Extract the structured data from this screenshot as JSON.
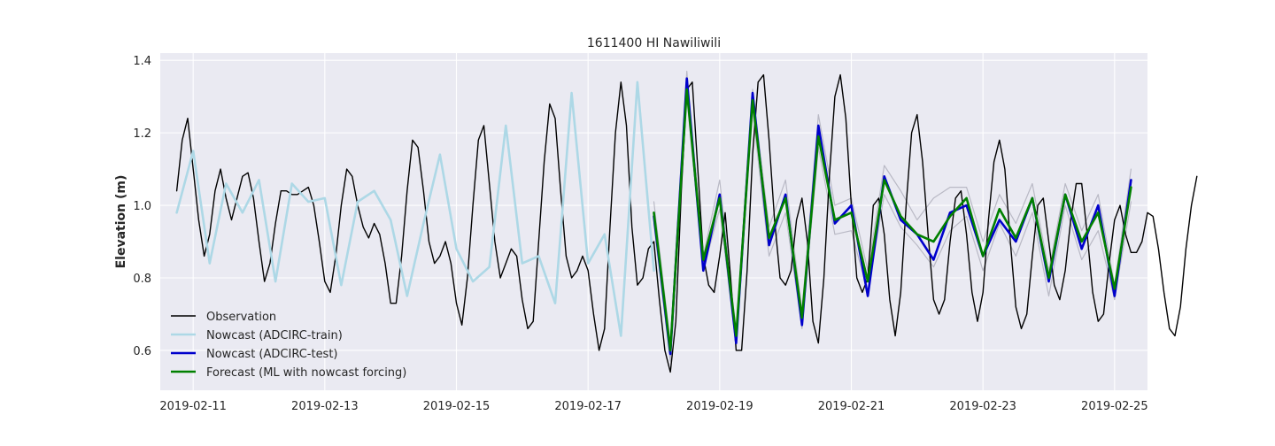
{
  "chart_data": {
    "type": "line",
    "title": "1611400 HI Nawiliwili",
    "xlabel": "",
    "ylabel": "Elevation (m)",
    "xlim": [
      "2019-02-10 12:00",
      "2019-02-25 12:00"
    ],
    "ylim": [
      0.49,
      1.42
    ],
    "xticks": [
      "2019-02-11",
      "2019-02-13",
      "2019-02-15",
      "2019-02-17",
      "2019-02-19",
      "2019-02-21",
      "2019-02-23",
      "2019-02-25"
    ],
    "yticks": [
      "0.6",
      "0.8",
      "1.0",
      "1.2",
      "1.4"
    ],
    "grid": true,
    "legend_position": "lower-left",
    "legend": [
      "Observation",
      "Nowcast (ADCIRC-train)",
      "Nowcast (ADCIRC-test)",
      "Forecast (ML with nowcast forcing)"
    ],
    "background": "#eaeaf2",
    "observation": {
      "color": "#000000",
      "start": "2019-02-10 18:00",
      "step_hours": 2,
      "values": [
        1.04,
        1.18,
        1.24,
        1.1,
        0.96,
        0.86,
        0.92,
        1.04,
        1.1,
        1.02,
        0.96,
        1.02,
        1.08,
        1.09,
        1.02,
        0.9,
        0.79,
        0.84,
        0.95,
        1.04,
        1.04,
        1.03,
        1.03,
        1.04,
        1.05,
        1.0,
        0.9,
        0.79,
        0.76,
        0.86,
        1.0,
        1.1,
        1.08,
        1.0,
        0.94,
        0.91,
        0.95,
        0.92,
        0.84,
        0.73,
        0.73,
        0.86,
        1.04,
        1.18,
        1.16,
        1.04,
        0.9,
        0.84,
        0.86,
        0.9,
        0.84,
        0.73,
        0.67,
        0.8,
        1.0,
        1.18,
        1.22,
        1.06,
        0.9,
        0.8,
        0.84,
        0.88,
        0.86,
        0.74,
        0.66,
        0.68,
        0.9,
        1.12,
        1.28,
        1.24,
        1.04,
        0.86,
        0.8,
        0.82,
        0.86,
        0.82,
        0.7,
        0.6,
        0.66,
        0.94,
        1.2,
        1.34,
        1.22,
        0.94,
        0.78,
        0.8,
        0.88,
        0.9,
        0.74,
        0.6,
        0.54,
        0.68,
        1.04,
        1.32,
        1.34,
        1.1,
        0.86,
        0.78,
        0.76,
        0.86,
        0.98,
        0.8,
        0.6,
        0.6,
        0.82,
        1.14,
        1.34,
        1.36,
        1.18,
        0.96,
        0.8,
        0.78,
        0.82,
        0.96,
        1.02,
        0.9,
        0.68,
        0.62,
        0.8,
        1.08,
        1.3,
        1.36,
        1.24,
        1.0,
        0.8,
        0.76,
        0.8,
        1.0,
        1.02,
        0.92,
        0.74,
        0.64,
        0.76,
        1.0,
        1.2,
        1.25,
        1.12,
        0.92,
        0.74,
        0.7,
        0.74,
        0.9,
        1.02,
        1.04,
        0.92,
        0.76,
        0.68,
        0.76,
        0.96,
        1.12,
        1.18,
        1.1,
        0.9,
        0.72,
        0.66,
        0.7,
        0.86,
        1.0,
        1.02,
        0.9,
        0.78,
        0.74,
        0.82,
        0.96,
        1.06,
        1.06,
        0.92,
        0.76,
        0.68,
        0.7,
        0.84,
        0.96,
        1.0,
        0.92,
        0.87,
        0.87,
        0.9,
        0.98,
        0.97,
        0.88,
        0.76,
        0.66,
        0.64,
        0.72,
        0.88,
        1.0,
        1.08
      ]
    },
    "nowcast_train": {
      "color": "#add8e6",
      "points": [
        [
          "2019-02-10 18:00",
          0.98
        ],
        [
          "2019-02-11 00:00",
          1.15
        ],
        [
          "2019-02-11 06:00",
          0.84
        ],
        [
          "2019-02-11 12:00",
          1.06
        ],
        [
          "2019-02-11 18:00",
          0.98
        ],
        [
          "2019-02-12 00:00",
          1.07
        ],
        [
          "2019-02-12 06:00",
          0.79
        ],
        [
          "2019-02-12 12:00",
          1.06
        ],
        [
          "2019-02-12 18:00",
          1.01
        ],
        [
          "2019-02-13 00:00",
          1.02
        ],
        [
          "2019-02-13 06:00",
          0.78
        ],
        [
          "2019-02-13 12:00",
          1.01
        ],
        [
          "2019-02-13 18:00",
          1.04
        ],
        [
          "2019-02-14 00:00",
          0.96
        ],
        [
          "2019-02-14 06:00",
          0.75
        ],
        [
          "2019-02-14 12:00",
          0.95
        ],
        [
          "2019-02-14 18:00",
          1.14
        ],
        [
          "2019-02-15 00:00",
          0.88
        ],
        [
          "2019-02-15 06:00",
          0.79
        ],
        [
          "2019-02-15 12:00",
          0.83
        ],
        [
          "2019-02-15 18:00",
          1.22
        ],
        [
          "2019-02-16 00:00",
          0.84
        ],
        [
          "2019-02-16 06:00",
          0.86
        ],
        [
          "2019-02-16 12:00",
          0.73
        ],
        [
          "2019-02-16 18:00",
          1.31
        ],
        [
          "2019-02-17 00:00",
          0.84
        ],
        [
          "2019-02-17 06:00",
          0.92
        ],
        [
          "2019-02-17 12:00",
          0.64
        ],
        [
          "2019-02-17 18:00",
          1.34
        ],
        [
          "2019-02-18 00:00",
          0.82
        ]
      ]
    },
    "nowcast_test": {
      "color": "#0000cc",
      "x": [
        "2019-02-18 00:00",
        "2019-02-18 06:00",
        "2019-02-18 12:00",
        "2019-02-18 18:00",
        "2019-02-19 00:00",
        "2019-02-19 06:00",
        "2019-02-19 12:00",
        "2019-02-19 18:00",
        "2019-02-20 00:00",
        "2019-02-20 06:00",
        "2019-02-20 12:00",
        "2019-02-20 18:00",
        "2019-02-21 00:00",
        "2019-02-21 06:00",
        "2019-02-21 12:00",
        "2019-02-21 18:00",
        "2019-02-22 00:00",
        "2019-02-22 06:00",
        "2019-02-22 12:00",
        "2019-02-22 18:00",
        "2019-02-23 00:00",
        "2019-02-23 06:00",
        "2019-02-23 12:00",
        "2019-02-23 18:00",
        "2019-02-24 00:00",
        "2019-02-24 06:00",
        "2019-02-24 12:00",
        "2019-02-24 18:00",
        "2019-02-25 00:00",
        "2019-02-25 06:00"
      ],
      "values": [
        0.97,
        0.59,
        1.35,
        0.82,
        1.03,
        0.62,
        1.31,
        0.89,
        1.03,
        0.67,
        1.22,
        0.95,
        1.0,
        0.75,
        1.08,
        0.96,
        0.92,
        0.85,
        0.98,
        1.0,
        0.86,
        0.96,
        0.9,
        1.02,
        0.79,
        1.03,
        0.88,
        1.0,
        0.75,
        1.07
      ]
    },
    "forecast": {
      "color": "#008000",
      "x": [
        "2019-02-18 00:00",
        "2019-02-18 06:00",
        "2019-02-18 12:00",
        "2019-02-18 18:00",
        "2019-02-19 00:00",
        "2019-02-19 06:00",
        "2019-02-19 12:00",
        "2019-02-19 18:00",
        "2019-02-20 00:00",
        "2019-02-20 06:00",
        "2019-02-20 12:00",
        "2019-02-20 18:00",
        "2019-02-21 00:00",
        "2019-02-21 06:00",
        "2019-02-21 12:00",
        "2019-02-21 18:00",
        "2019-02-22 00:00",
        "2019-02-22 06:00",
        "2019-02-22 12:00",
        "2019-02-22 18:00",
        "2019-02-23 00:00",
        "2019-02-23 06:00",
        "2019-02-23 12:00",
        "2019-02-23 18:00",
        "2019-02-24 00:00",
        "2019-02-24 06:00",
        "2019-02-24 12:00",
        "2019-02-24 18:00",
        "2019-02-25 00:00",
        "2019-02-25 06:00"
      ],
      "values": [
        0.98,
        0.6,
        1.32,
        0.85,
        1.02,
        0.64,
        1.29,
        0.91,
        1.02,
        0.69,
        1.19,
        0.96,
        0.98,
        0.79,
        1.07,
        0.97,
        0.92,
        0.9,
        0.97,
        1.02,
        0.86,
        0.99,
        0.91,
        1.02,
        0.8,
        1.03,
        0.9,
        0.98,
        0.77,
        1.05
      ],
      "spread_color": "#b4b4c0",
      "spread_upper": [
        1.01,
        0.62,
        1.37,
        0.86,
        1.07,
        0.65,
        1.32,
        0.94,
        1.07,
        0.71,
        1.25,
        1.0,
        1.02,
        0.82,
        1.11,
        1.04,
        0.96,
        1.02,
        1.05,
        1.05,
        0.9,
        1.03,
        0.95,
        1.06,
        0.82,
        1.06,
        0.93,
        1.03,
        0.78,
        1.1
      ],
      "spread_lower": [
        0.95,
        0.57,
        1.3,
        0.82,
        0.99,
        0.61,
        1.26,
        0.86,
        0.98,
        0.66,
        1.16,
        0.92,
        0.93,
        0.76,
        1.03,
        0.94,
        0.89,
        0.83,
        0.93,
        0.97,
        0.82,
        0.95,
        0.86,
        0.98,
        0.75,
        1.0,
        0.85,
        0.93,
        0.74,
        1.01
      ]
    }
  }
}
